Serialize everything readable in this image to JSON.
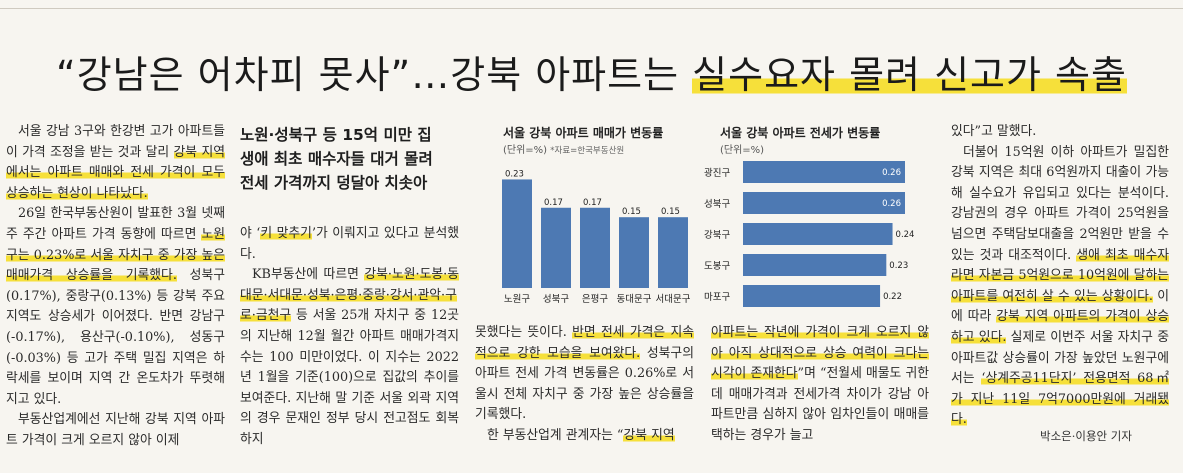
{
  "headline": {
    "part1": "“강남은 어차피 못사”…강북 아파트는 ",
    "part2": "실수요자 몰려 신고가 속출"
  },
  "col1": {
    "p1a": "서울 강남 3구와 한강변 고가 아파트들이 가격 조정을 받는 것과 달리 ",
    "p1b": "강북 지역에서는 아파트 매매와 전세 가격이 모두 상승하는 현상이 나타났다.",
    "p2a": "26일 한국부동산원이 발표한 3월 넷째주 주간 아파트 가격 동향에 따르면 ",
    "p2b": "노원구는 0.23%로 서울 자치구 중 가장 높은 매매가격 상승률을 기록했다.",
    "p2c": " 성북구(0.17%), 중랑구(0.13%) 등 강북 주요 지역도 상승세가 이어졌다. 반면 강남구(-0.17%), 용산구(-0.10%), 성동구(-0.03%) 등 고가 주택 밀집 지역은 하락세를 보이며 지역 간 온도차가 뚜렷해지고 있다.",
    "p3": "부동산업계에선 지난해 강북 지역 아파트 가격이 크게 오르지 않아 이제"
  },
  "col2": {
    "sub1": "노원·성북구 등 15억 미만 집",
    "sub2": "생애 최초 매수자들 대거 몰려",
    "sub3": "전세 가격까지 덩달아 치솟아",
    "p1a": "야 ‘",
    "p1b": "키 맞추기",
    "p1c": "’가 이뤄지고 있다고 분석했다.",
    "p2a": "KB부동산에 따르면 ",
    "p2b": "강북·노원·도봉·동대문·서대문·성북·은평·중랑·강서·관악·구로·금천구",
    "p2c": " 등 서울 25개 자치구 중 12곳의 지난해 12월 월간 아파트 매매가격지수는 100 미만이었다. 이 지수는 2022년 1월을 기준(100)으로 집값의 추이를 보여준다. 지난해 말 기준 서울 외곽 지역의 경우 문재인 정부 당시 전고점도 회복하지"
  },
  "col3": {
    "p1a": "못했다는 뜻이다. ",
    "p1b": "반면 전세 가격은 지속적으로 강한 모습을 보여왔다.",
    "p1c": " 성북구의 아파트 전세 가격 변동률은 0.26%로 서울시 전체 자치구 중 가장 높은 상승률을 기록했다.",
    "p2a": "한 부동산업계 관계자는 “",
    "p2b": "강북 지역"
  },
  "col4": {
    "p1a": "아파트는 작년에 가격이 크게 오르지 않아 아직 상대적으로 상승 여력이 크다는 시각이 존재한다",
    "p1b": "”며 “전월세 매물도 귀한데 매매가격과 전세가격 차이가 강남 아파트만큼 심하지 않아 임차인들이 매매를 택하는 경우가 늘고"
  },
  "col5": {
    "p1": "있다”고 말했다.",
    "p2a": "더불어 15억원 이하 아파트가 밀집한 강북 지역은 최대 6억원까지 대출이 가능해 실수요가 유입되고 있다는 분석이다. 강남권의 경우 아파트 가격이 25억원을 넘으면 주택담보대출을 2억원만 받을 수 있는 것과 대조적이다. ",
    "p2b": "생애 최초 매수자라면 자본금 5억원으로 10억원에 달하는 아파트를 여전히 살 수 있는 상황이다.",
    "p2c": " 이에 따라 ",
    "p2d": "강북 지역 아파트의 가격이 상승하고 있다.",
    "p2e": " 실제로 이번주 서울 자치구 중 아파트값 상승률이 가장 높았던 노원구에서는 ",
    "p2f": "‘상계주공11단지’ 전용면적 68㎡가 지난 11일 7억7000만원에 거래됐다.",
    "byline": "박소은·이용안 기자"
  },
  "chart_data": [
    {
      "type": "bar",
      "title": "서울 강북 아파트 매매가 변동률",
      "unit": "(단위=%)",
      "source": "*자료=한국부동산원",
      "categories": [
        "노원구",
        "성북구",
        "은평구",
        "동대문구",
        "서대문구"
      ],
      "values": [
        0.23,
        0.17,
        0.17,
        0.15,
        0.15
      ],
      "value_labels": [
        "0.23",
        "0.17",
        "0.17",
        "0.15",
        "0.15"
      ],
      "ylim": [
        0,
        0.25
      ],
      "color": "#4d79b3"
    },
    {
      "type": "bar",
      "orientation": "horizontal",
      "title": "서울 강북 아파트 전세가 변동률",
      "unit": "(단위=%)",
      "categories": [
        "광진구",
        "성북구",
        "강북구",
        "도봉구",
        "마포구"
      ],
      "values": [
        0.26,
        0.26,
        0.24,
        0.23,
        0.22
      ],
      "value_labels": [
        "0.26",
        "0.26",
        "0.24",
        "0.23",
        "0.22"
      ],
      "xlim": [
        0,
        0.26
      ],
      "color": "#4d79b3"
    }
  ]
}
